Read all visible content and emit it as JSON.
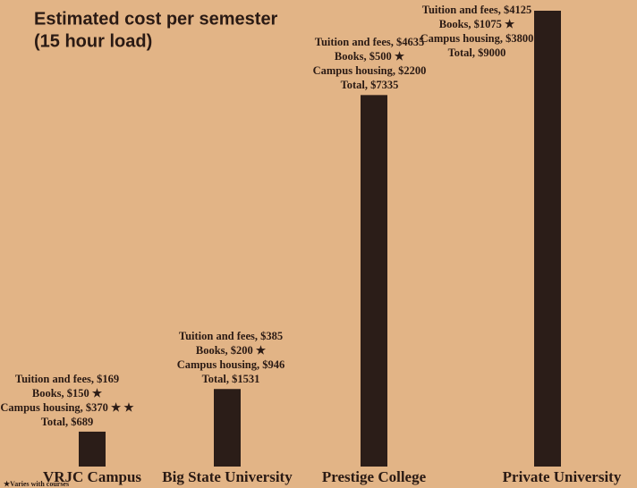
{
  "chart_data": {
    "type": "bar",
    "title": "Estimated cost per semester",
    "subtitle": "(15 hour load)",
    "categories": [
      "VRJC Campus",
      "Big State University",
      "Prestige College",
      "Private University"
    ],
    "values": [
      689,
      1531,
      7335,
      9000
    ],
    "value_labels": [
      "Total, $689",
      "Total, $1531",
      "Total, $7335",
      "Total, $9000"
    ],
    "details": [
      [
        "Tuition and fees, $169",
        "Books, $150 ★",
        "Campus housing, $370 ★ ★"
      ],
      [
        "Tuition and fees, $385",
        "Books, $200 ★",
        "Campus housing, $946"
      ],
      [
        "Tuition and fees, $4635",
        "Books, $500 ★",
        "Campus housing, $2200"
      ],
      [
        "Tuition and fees, $4125",
        "Books, $1075 ★",
        "Campus housing, $3800"
      ]
    ],
    "note": "★Varies with courses",
    "color": "#2b1d18"
  }
}
